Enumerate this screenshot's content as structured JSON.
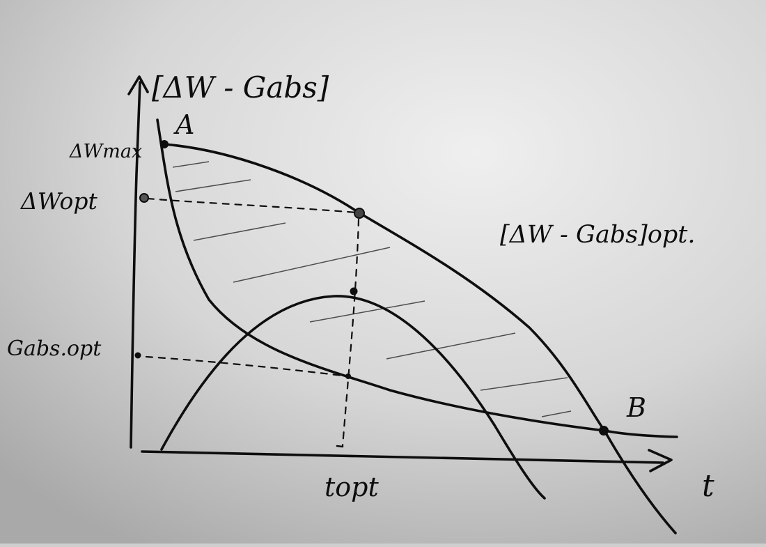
{
  "diagram": {
    "axis_y_label": "[ΔW - Gabs]",
    "axis_x_label": "t",
    "point_a_label": "A",
    "point_b_label": "B",
    "tick_dw_max": "ΔWmax",
    "tick_dw_opt": "ΔWopt",
    "tick_gabs_opt": "Gabs.opt",
    "tick_t_opt": "topt",
    "curve_label_opt": "[ΔW - Gabs]opt."
  }
}
